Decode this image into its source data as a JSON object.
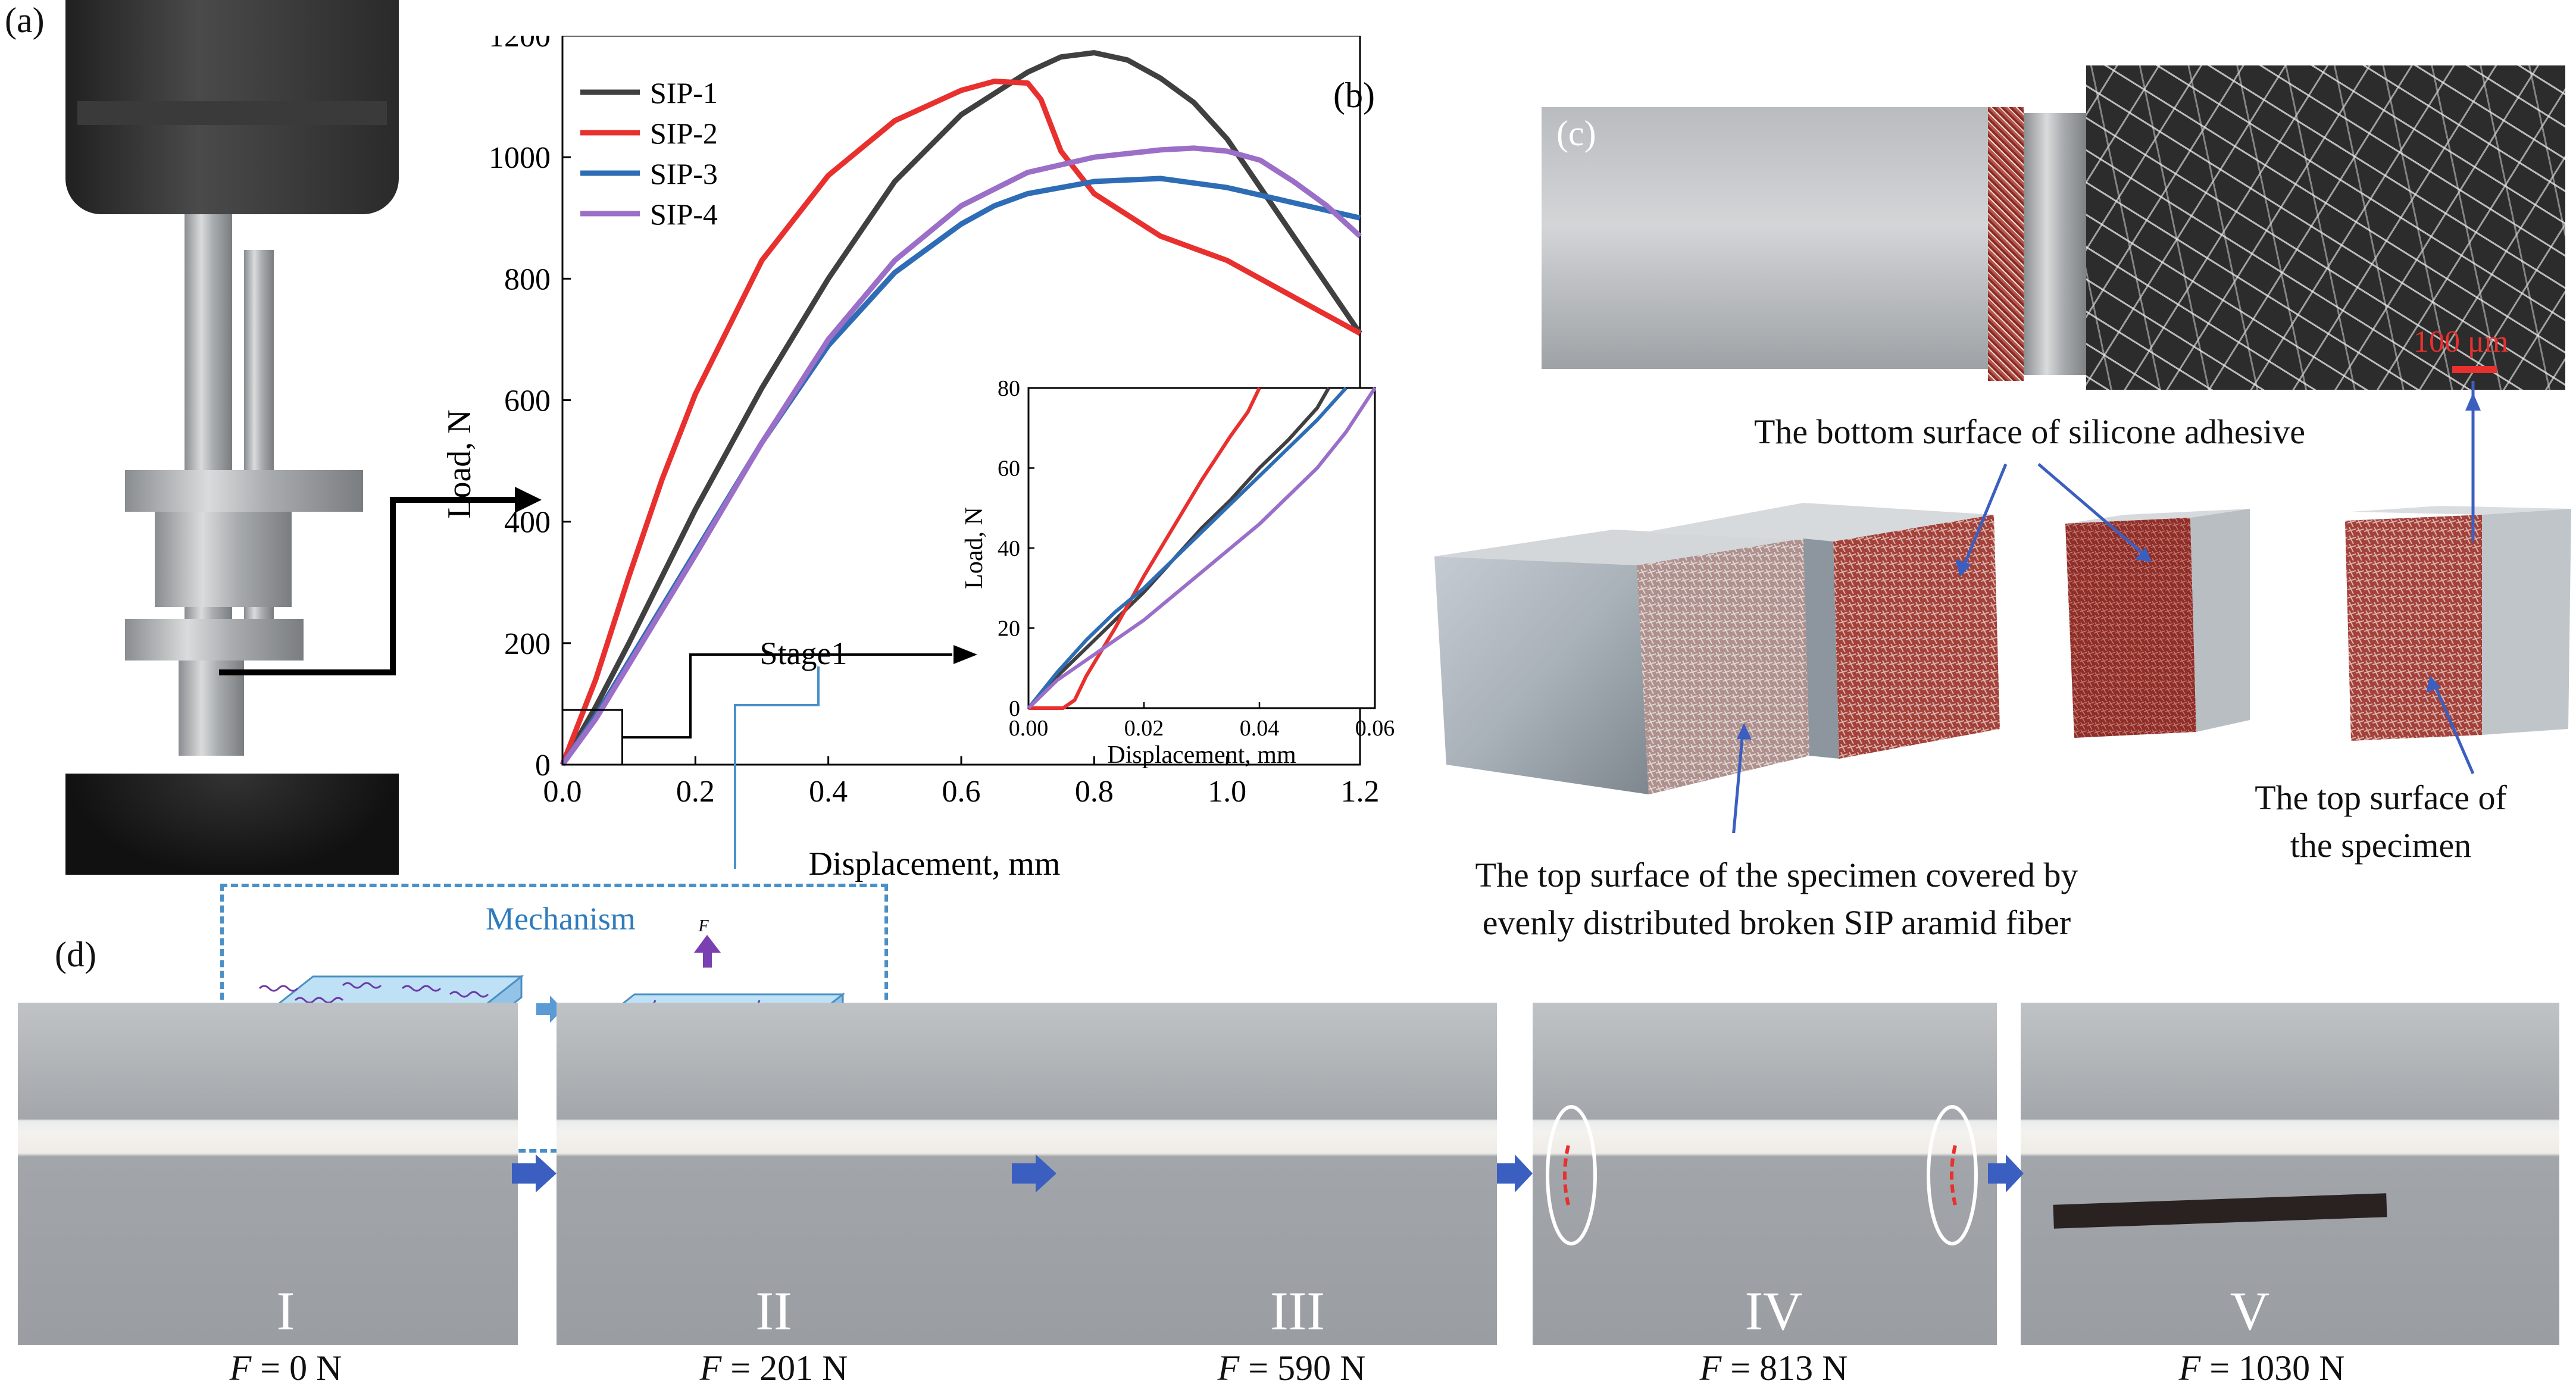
{
  "panel_labels": {
    "a": "(a)",
    "b": "(b)",
    "c": "(c)",
    "d": "(d)"
  },
  "chart_data": [
    {
      "type": "line",
      "xlabel": "Displacement, mm",
      "ylabel": "Load, N",
      "xlim": [
        0,
        1.2
      ],
      "ylim": [
        0,
        1200
      ],
      "xticks": [
        "0.0",
        "0.2",
        "0.4",
        "0.6",
        "0.8",
        "1.0",
        "1.2"
      ],
      "yticks": [
        "0",
        "200",
        "400",
        "600",
        "800",
        "1000",
        "1200"
      ],
      "legend": "top-left",
      "annotation": "Stage1",
      "series": [
        {
          "name": "SIP-1",
          "color": "#404040",
          "x": [
            0,
            0.05,
            0.1,
            0.15,
            0.2,
            0.3,
            0.4,
            0.5,
            0.6,
            0.7,
            0.75,
            0.8,
            0.85,
            0.9,
            0.95,
            1.0,
            1.05,
            1.1,
            1.15,
            1.2
          ],
          "y": [
            0,
            95,
            200,
            310,
            420,
            620,
            800,
            960,
            1070,
            1140,
            1165,
            1172,
            1160,
            1130,
            1090,
            1030,
            950,
            870,
            790,
            710
          ]
        },
        {
          "name": "SIP-2",
          "color": "#e8302e",
          "x": [
            0,
            0.05,
            0.1,
            0.15,
            0.2,
            0.3,
            0.4,
            0.5,
            0.6,
            0.65,
            0.7,
            0.72,
            0.75,
            0.8,
            0.9,
            1.0,
            1.1,
            1.2
          ],
          "y": [
            0,
            140,
            310,
            470,
            610,
            830,
            970,
            1060,
            1110,
            1125,
            1122,
            1095,
            1010,
            940,
            870,
            830,
            770,
            710
          ]
        },
        {
          "name": "SIP-3",
          "color": "#2e6db5",
          "x": [
            0,
            0.05,
            0.1,
            0.15,
            0.2,
            0.3,
            0.4,
            0.5,
            0.6,
            0.65,
            0.7,
            0.8,
            0.9,
            1.0,
            1.1,
            1.2
          ],
          "y": [
            0,
            80,
            170,
            260,
            350,
            530,
            690,
            810,
            890,
            920,
            940,
            960,
            965,
            950,
            925,
            900
          ]
        },
        {
          "name": "SIP-4",
          "color": "#9b6fc8",
          "x": [
            0,
            0.05,
            0.1,
            0.15,
            0.2,
            0.3,
            0.4,
            0.5,
            0.6,
            0.7,
            0.8,
            0.9,
            0.95,
            1.0,
            1.05,
            1.1,
            1.15,
            1.2
          ],
          "y": [
            0,
            75,
            165,
            255,
            345,
            530,
            700,
            830,
            920,
            975,
            1000,
            1012,
            1015,
            1010,
            995,
            960,
            920,
            870
          ]
        }
      ]
    },
    {
      "type": "line",
      "xlabel": "Displacement, mm",
      "ylabel": "Load, N",
      "xlim": [
        0,
        0.06
      ],
      "ylim": [
        0,
        80
      ],
      "xticks": [
        "0.00",
        "0.02",
        "0.04",
        "0.06"
      ],
      "yticks": [
        "0",
        "20",
        "40",
        "60",
        "80"
      ],
      "series": [
        {
          "name": "SIP-1",
          "color": "#404040",
          "x": [
            0,
            0.005,
            0.01,
            0.015,
            0.02,
            0.025,
            0.03,
            0.035,
            0.04,
            0.045,
            0.05,
            0.052
          ],
          "y": [
            0,
            8,
            15,
            22,
            29,
            37,
            45,
            52,
            60,
            67,
            75,
            80
          ]
        },
        {
          "name": "SIP-2",
          "color": "#e8302e",
          "x": [
            0,
            0.006,
            0.008,
            0.01,
            0.015,
            0.02,
            0.025,
            0.03,
            0.035,
            0.038,
            0.04
          ],
          "y": [
            0,
            0,
            2,
            8,
            20,
            33,
            45,
            57,
            68,
            74,
            80
          ]
        },
        {
          "name": "SIP-3",
          "color": "#2e6db5",
          "x": [
            0,
            0.005,
            0.01,
            0.015,
            0.02,
            0.025,
            0.03,
            0.035,
            0.04,
            0.045,
            0.05,
            0.055
          ],
          "y": [
            0,
            9,
            17,
            24,
            30,
            37,
            44,
            51,
            58,
            65,
            72,
            80
          ]
        },
        {
          "name": "SIP-4",
          "color": "#9b6fc8",
          "x": [
            0,
            0.005,
            0.01,
            0.015,
            0.02,
            0.025,
            0.03,
            0.035,
            0.04,
            0.045,
            0.05,
            0.055,
            0.06
          ],
          "y": [
            0,
            7,
            12,
            17,
            22,
            28,
            34,
            40,
            46,
            53,
            60,
            69,
            80
          ]
        }
      ]
    }
  ],
  "mechanism": {
    "title": "Mechanism",
    "force_symbol": "F"
  },
  "panel_c": {
    "scale_bar": "100 μm",
    "annotations": {
      "bottom_surface": "The bottom surface of silicone adhesive",
      "top_surface_covered_line1": "The top surface of the specimen covered by",
      "top_surface_covered_line2": "evenly distributed broken SIP aramid fiber",
      "top_surface_line1": "The top surface of",
      "top_surface_line2": "the specimen"
    }
  },
  "panel_d": {
    "stages": [
      {
        "numeral": "I",
        "symbol": "F",
        "value": " = 0 N"
      },
      {
        "numeral": "II",
        "symbol": "F",
        "value": " = 201 N"
      },
      {
        "numeral": "III",
        "symbol": "F",
        "value": " = 590 N"
      },
      {
        "numeral": "IV",
        "symbol": "F",
        "value": " = 813 N"
      },
      {
        "numeral": "V",
        "symbol": "F",
        "value": " = 1030 N"
      }
    ]
  },
  "colors": {
    "arrow_blue": "#3b5fc0",
    "mechanism_border": "#4a90c8",
    "sip1": "#404040",
    "sip2": "#e8302e",
    "sip3": "#2e6db5",
    "sip4": "#9b6fc8"
  }
}
